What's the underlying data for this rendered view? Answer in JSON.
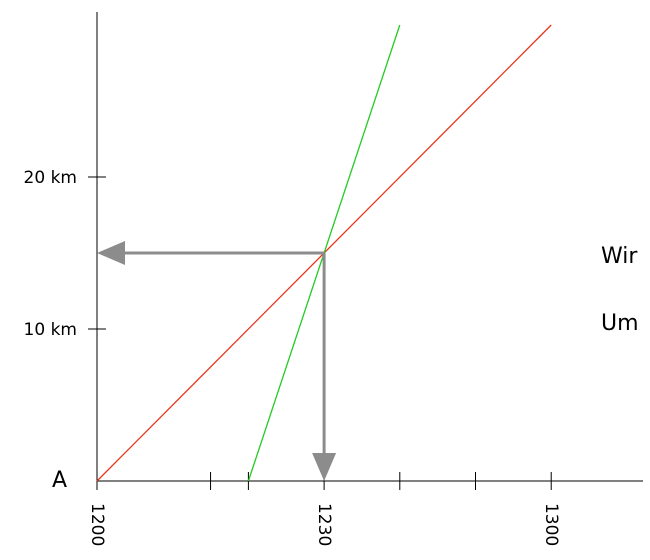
{
  "chart_data": {
    "type": "line",
    "title": "",
    "xlabel": "",
    "ylabel": "",
    "xlim": [
      1200,
      1340
    ],
    "ylim": [
      0,
      30
    ],
    "x_ticks": [
      {
        "value": 1200,
        "label": "1200"
      },
      {
        "value": 1215,
        "label": ""
      },
      {
        "value": 1220,
        "label": ""
      },
      {
        "value": 1230,
        "label": "1230"
      },
      {
        "value": 1240,
        "label": ""
      },
      {
        "value": 1250,
        "label": ""
      },
      {
        "value": 1300,
        "label": "1300"
      }
    ],
    "y_ticks": [
      {
        "value": 10,
        "label": "10 km"
      },
      {
        "value": 20,
        "label": "20 km"
      }
    ],
    "origin_label": "A",
    "series": [
      {
        "color": "#e8341a",
        "points": [
          [
            1200,
            0
          ],
          [
            1300,
            30
          ]
        ]
      },
      {
        "color": "#22cc22",
        "points": [
          [
            1220,
            0
          ],
          [
            1240,
            30
          ]
        ]
      }
    ],
    "arrows": [
      {
        "from": [
          1230,
          15
        ],
        "to": [
          1200,
          15
        ],
        "color": "#8c8c8c"
      },
      {
        "from": [
          1230,
          15
        ],
        "to": [
          1230,
          0
        ],
        "color": "#8c8c8c"
      }
    ],
    "annotations": [
      "Wir",
      "Um"
    ],
    "grid": false,
    "legend": "none"
  },
  "colors": {
    "axis": "#000000",
    "arrow": "#8c8c8c"
  }
}
